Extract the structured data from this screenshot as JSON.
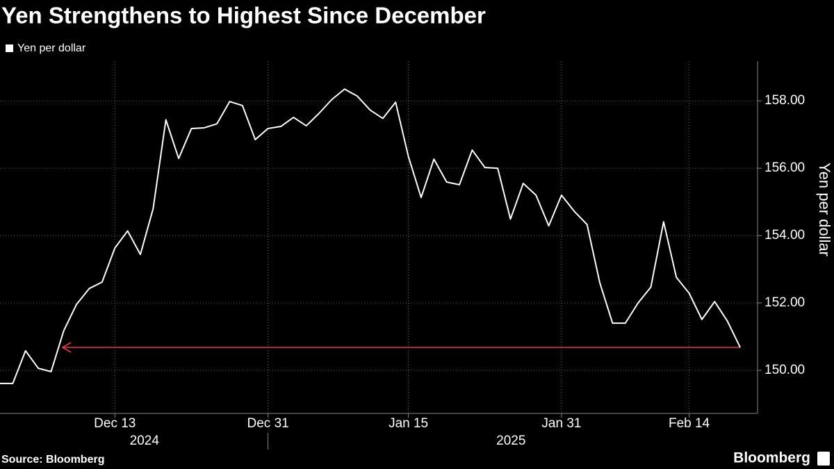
{
  "chart_data": {
    "type": "line",
    "title": "Yen Strengthens to Highest Since December",
    "source": "Source: Bloomberg",
    "brand": "Bloomberg",
    "y_axis_label": "Yen per dollar",
    "year_labels": [
      "2024",
      "2025"
    ],
    "categories": [
      null,
      null,
      null,
      null,
      null,
      null,
      null,
      null,
      null,
      "Dec 13",
      null,
      null,
      null,
      null,
      null,
      null,
      null,
      null,
      null,
      null,
      null,
      "Dec 31",
      null,
      null,
      null,
      null,
      null,
      null,
      null,
      null,
      null,
      null,
      "Jan 15",
      null,
      null,
      null,
      null,
      null,
      null,
      null,
      null,
      null,
      null,
      null,
      "Jan 31",
      null,
      null,
      null,
      null,
      null,
      null,
      null,
      null,
      null,
      "Feb 14",
      null,
      null,
      null,
      null
    ],
    "series": [
      {
        "name": "Yen per dollar",
        "color": "#ffffff",
        "values": [
          149.61,
          149.61,
          150.58,
          150.06,
          149.96,
          151.18,
          151.96,
          152.43,
          152.62,
          153.63,
          154.14,
          153.44,
          154.8,
          157.44,
          156.29,
          157.18,
          157.2,
          157.32,
          157.98,
          157.86,
          156.85,
          157.18,
          157.24,
          157.51,
          157.26,
          157.63,
          158.04,
          158.35,
          158.14,
          157.73,
          157.48,
          157.96,
          156.35,
          155.13,
          156.27,
          155.59,
          155.51,
          156.54,
          156.02,
          156.0,
          154.49,
          155.55,
          155.2,
          154.29,
          155.2,
          154.72,
          154.33,
          152.6,
          151.4,
          151.4,
          152.0,
          152.47,
          154.41,
          152.76,
          152.29,
          151.51,
          152.04,
          151.46,
          150.68
        ]
      }
    ],
    "annotation_color": "#e8364a",
    "ylim": [
      148.72,
      159.18
    ],
    "yticks": [
      {
        "value": 150,
        "label": "150.00"
      },
      {
        "value": 152,
        "label": "152.00"
      },
      {
        "value": 154,
        "label": "154.00"
      },
      {
        "value": 156,
        "label": "156.00"
      },
      {
        "value": 158,
        "label": "158.00"
      }
    ],
    "grid": true
  }
}
